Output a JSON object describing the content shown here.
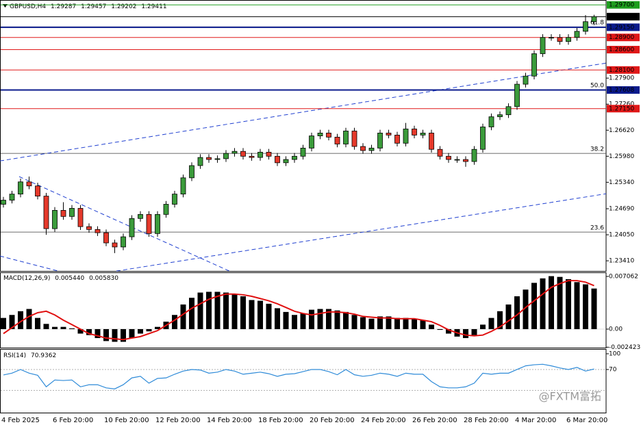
{
  "chart_data": [
    {
      "type": "candlestick",
      "symbol": "GBPUSD,H4",
      "categories": [
        "4 Feb 2025",
        null,
        null,
        null,
        null,
        null,
        "6 Feb 20:00",
        null,
        null,
        null,
        null,
        null,
        "10 Feb 20:00",
        null,
        null,
        null,
        null,
        null,
        "12 Feb 20:00",
        null,
        null,
        null,
        null,
        null,
        "14 Feb 20:00",
        null,
        null,
        null,
        null,
        null,
        "18 Feb 20:00",
        null,
        null,
        null,
        null,
        null,
        "20 Feb 20:00",
        null,
        null,
        null,
        null,
        null,
        "24 Feb 20:00",
        null,
        null,
        null,
        null,
        null,
        "26 Feb 20:00",
        null,
        null,
        null,
        null,
        null,
        "28 Feb 20:00",
        null,
        null,
        null,
        null,
        null,
        "4 Mar 20:00",
        null,
        null,
        null,
        null,
        null,
        "6 Mar 20:00",
        null,
        null,
        null
      ],
      "open": [
        1.248,
        1.249,
        1.2505,
        1.2535,
        1.2525,
        1.25,
        1.242,
        1.2465,
        1.245,
        1.247,
        1.2425,
        1.2418,
        1.241,
        1.2385,
        1.2375,
        1.24,
        1.2445,
        1.2455,
        1.2408,
        1.2455,
        1.248,
        1.2505,
        1.2545,
        1.2575,
        1.2595,
        1.259,
        1.2592,
        1.2605,
        1.261,
        1.2598,
        1.2595,
        1.2608,
        1.2598,
        1.2582,
        1.259,
        1.2598,
        1.2618,
        1.2648,
        1.2655,
        1.2645,
        1.2628,
        1.266,
        1.2622,
        1.2612,
        1.2618,
        1.2655,
        1.265,
        1.263,
        1.2665,
        1.265,
        1.2655,
        1.2615,
        1.2598,
        1.259,
        1.259,
        1.2585,
        1.2615,
        1.267,
        1.2695,
        1.27,
        1.272,
        1.2775,
        1.2795,
        1.285,
        1.289,
        1.289,
        1.288,
        1.289,
        1.2905,
        1.29287
      ],
      "high": [
        1.2498,
        1.2513,
        1.2543,
        1.2548,
        1.2533,
        1.2508,
        1.2473,
        1.2485,
        1.2478,
        1.2478,
        1.2433,
        1.2426,
        1.2418,
        1.2393,
        1.2408,
        1.2453,
        1.2463,
        1.2463,
        1.2463,
        1.2488,
        1.2513,
        1.2553,
        1.2583,
        1.2603,
        1.2603,
        1.26,
        1.2613,
        1.2618,
        1.2618,
        1.2606,
        1.2616,
        1.2616,
        1.2606,
        1.2598,
        1.2606,
        1.2626,
        1.2656,
        1.2663,
        1.2663,
        1.2653,
        1.2668,
        1.2668,
        1.263,
        1.2626,
        1.2663,
        1.2663,
        1.2658,
        1.268,
        1.2673,
        1.2663,
        1.2663,
        1.2623,
        1.2606,
        1.2598,
        1.2598,
        1.2623,
        1.2678,
        1.2703,
        1.2708,
        1.2728,
        1.2783,
        1.2803,
        1.2858,
        1.2898,
        1.2898,
        1.2898,
        1.2898,
        1.2913,
        1.2945,
        1.29457
      ],
      "low": [
        1.2472,
        1.2482,
        1.2497,
        1.2517,
        1.2492,
        1.2405,
        1.2412,
        1.2442,
        1.2442,
        1.2417,
        1.241,
        1.2402,
        1.2377,
        1.236,
        1.2367,
        1.2392,
        1.2437,
        1.24,
        1.24,
        1.2447,
        1.2472,
        1.2497,
        1.2537,
        1.2567,
        1.2582,
        1.2582,
        1.2584,
        1.2597,
        1.259,
        1.2587,
        1.2587,
        1.259,
        1.2574,
        1.2574,
        1.2582,
        1.259,
        1.261,
        1.264,
        1.2637,
        1.262,
        1.262,
        1.2614,
        1.2604,
        1.2604,
        1.261,
        1.2642,
        1.2622,
        1.2622,
        1.2642,
        1.2642,
        1.2607,
        1.259,
        1.2582,
        1.2582,
        1.2572,
        1.2577,
        1.2607,
        1.2662,
        1.2687,
        1.2692,
        1.2712,
        1.2767,
        1.2787,
        1.2842,
        1.2882,
        1.2872,
        1.2872,
        1.2882,
        1.2897,
        1.29202
      ],
      "close": [
        1.249,
        1.2505,
        1.2535,
        1.2525,
        1.25,
        1.242,
        1.2465,
        1.245,
        1.247,
        1.2425,
        1.2418,
        1.241,
        1.2385,
        1.2375,
        1.24,
        1.2445,
        1.2455,
        1.2408,
        1.2455,
        1.248,
        1.2505,
        1.2545,
        1.2575,
        1.2595,
        1.259,
        1.2592,
        1.2605,
        1.261,
        1.2598,
        1.2595,
        1.2608,
        1.2598,
        1.2582,
        1.259,
        1.2598,
        1.2618,
        1.2648,
        1.2655,
        1.2645,
        1.2628,
        1.266,
        1.2622,
        1.2612,
        1.2618,
        1.2655,
        1.265,
        1.263,
        1.2665,
        1.265,
        1.2655,
        1.2615,
        1.2598,
        1.259,
        1.259,
        1.2585,
        1.2615,
        1.267,
        1.2695,
        1.27,
        1.272,
        1.2775,
        1.2795,
        1.285,
        1.289,
        1.289,
        1.288,
        1.289,
        1.2905,
        1.29287,
        1.29411
      ],
      "up_color": "#3b9b3b",
      "down_color": "#e5392b",
      "ylim": [
        1.2316,
        1.2982
      ],
      "yticks": [
        {
          "value": 1.279,
          "label": "1.27900"
        },
        {
          "value": 1.2726,
          "label": "1.27260"
        },
        {
          "value": 1.2662,
          "label": "1.26620"
        },
        {
          "value": 1.2598,
          "label": "1.25980"
        },
        {
          "value": 1.2534,
          "label": "1.25340"
        },
        {
          "value": 1.2469,
          "label": "1.24690"
        },
        {
          "value": 1.2405,
          "label": "1.24050"
        },
        {
          "value": 1.2341,
          "label": "1.23410"
        }
      ],
      "levels": [
        {
          "value": 1.297,
          "label": "1.29700",
          "color": "#1e9e1e"
        },
        {
          "value": 1.29411,
          "label": "1.29411",
          "color": "#000000"
        },
        {
          "value": 1.2915,
          "label": "1.29150",
          "color": "#0a1a8c"
        },
        {
          "value": 1.289,
          "label": "1.28900",
          "color": "#e01818"
        },
        {
          "value": 1.286,
          "label": "1.28600",
          "color": "#e01818"
        },
        {
          "value": 1.281,
          "label": "1.28100",
          "color": "#e01818"
        },
        {
          "value": 1.27608,
          "label": "1.27608",
          "color": "#0a1a8c"
        },
        {
          "value": 1.2715,
          "label": "1.27150",
          "color": "#e01818"
        }
      ],
      "fib_levels": [
        {
          "level": "61.8",
          "value": 1.2916
        },
        {
          "level": "50.0",
          "value": 1.27615
        },
        {
          "level": "38.2",
          "value": 1.2605
        },
        {
          "level": "23.6",
          "value": 1.24116
        }
      ],
      "trendlines": [
        {
          "x": [
            -0.4,
            70.4
          ],
          "y": [
            1.25865,
            1.2827
          ]
        },
        {
          "x": [
            13.2,
            70.4
          ],
          "y": [
            1.23158,
            1.25058
          ]
        },
        {
          "x": [
            1.84,
            26.4
          ],
          "y": [
            1.25479,
            1.23158
          ]
        },
        {
          "x": [
            -0.4,
            6.4
          ],
          "y": [
            1.23528,
            1.23158
          ]
        }
      ],
      "trendline_color": "#1f3fd0"
    },
    {
      "type": "macd",
      "title": "MACD(12,26,9)",
      "readout": [
        {
          "value": 0.00544,
          "label": "0.005440"
        },
        {
          "value": 0.00583,
          "label": "0.005830"
        }
      ],
      "histogram": [
        0.0015,
        0.0019,
        0.0024,
        0.0027,
        0.0015,
        0.0007,
        0.0003,
        0.0003,
        0.0001,
        -0.0006,
        -0.0008,
        -0.0012,
        -0.0016,
        -0.0017,
        -0.0017,
        -0.0012,
        -0.0006,
        -0.0003,
        0.0003,
        0.001,
        0.0019,
        0.0033,
        0.0042,
        0.0049,
        0.005,
        0.005,
        0.0049,
        0.0047,
        0.0044,
        0.0039,
        0.0038,
        0.0034,
        0.0028,
        0.0023,
        0.0019,
        0.0021,
        0.0026,
        0.0027,
        0.0027,
        0.0025,
        0.0023,
        0.0019,
        0.0016,
        0.0014,
        0.0017,
        0.0017,
        0.0015,
        0.0015,
        0.0014,
        0.0012,
        0.0006,
        -0.0001,
        -0.0006,
        -0.001,
        -0.0012,
        -0.0008,
        0.0006,
        0.0015,
        0.0024,
        0.0033,
        0.0044,
        0.0053,
        0.0062,
        0.0068,
        0.0071,
        0.007,
        0.0067,
        0.0063,
        0.006,
        0.00544
      ],
      "signal": [
        -0.0006,
        0.0002,
        0.001,
        0.0017,
        0.0022,
        0.0024,
        0.0019,
        0.0012,
        0.0006,
        0,
        -0.0006,
        -0.0009,
        -0.0012,
        -0.0013,
        -0.0014,
        -0.0012,
        -0.001,
        -0.0006,
        -0.0002,
        0.0005,
        0.0012,
        0.002,
        0.0028,
        0.0034,
        0.004,
        0.0044,
        0.0047,
        0.0047,
        0.0046,
        0.0044,
        0.0041,
        0.0038,
        0.0034,
        0.0029,
        0.0024,
        0.0021,
        0.0019,
        0.0021,
        0.0023,
        0.0023,
        0.0022,
        0.002,
        0.0017,
        0.0016,
        0.0015,
        0.0015,
        0.0014,
        0.0014,
        0.0014,
        0.0012,
        0.001,
        0.0005,
        -0.0001,
        -0.0005,
        -0.0008,
        -0.0009,
        -0.0008,
        -0.0003,
        0.0003,
        0.0011,
        0.0019,
        0.0029,
        0.0038,
        0.0047,
        0.0056,
        0.0061,
        0.0065,
        0.0065,
        0.0063,
        0.00583
      ],
      "histogram_color": "#000000",
      "signal_color": "#e01010",
      "ylim": [
        -0.00248,
        0.00761
      ],
      "yticks": [
        0.007062,
        {
          "value": 0,
          "label": "0.00"
        },
        -0.002423
      ]
    },
    {
      "type": "rsi",
      "title": "RSI(14)",
      "values": [
        59.6,
        63,
        70,
        63,
        59,
        37,
        50,
        49,
        50,
        37,
        41,
        41,
        35,
        33,
        41,
        54,
        57,
        44,
        53,
        54,
        61,
        67,
        70,
        69,
        63,
        65,
        70,
        67,
        61,
        63,
        65,
        62,
        57,
        61,
        62,
        66,
        70,
        70,
        66,
        60,
        70,
        60,
        57,
        59,
        63,
        61,
        57,
        63,
        61,
        61,
        47,
        37,
        35,
        35,
        37,
        44,
        63,
        61,
        63,
        63,
        70,
        77,
        79,
        80,
        77,
        73,
        70,
        74,
        67,
        70.9362
      ],
      "color": "#2d8ad8",
      "levels": [
        70,
        30
      ],
      "ylim": [
        -13.5,
        109.1
      ],
      "yticks": [
        100,
        70
      ]
    }
  ],
  "watermark": "@FXTM富拓"
}
